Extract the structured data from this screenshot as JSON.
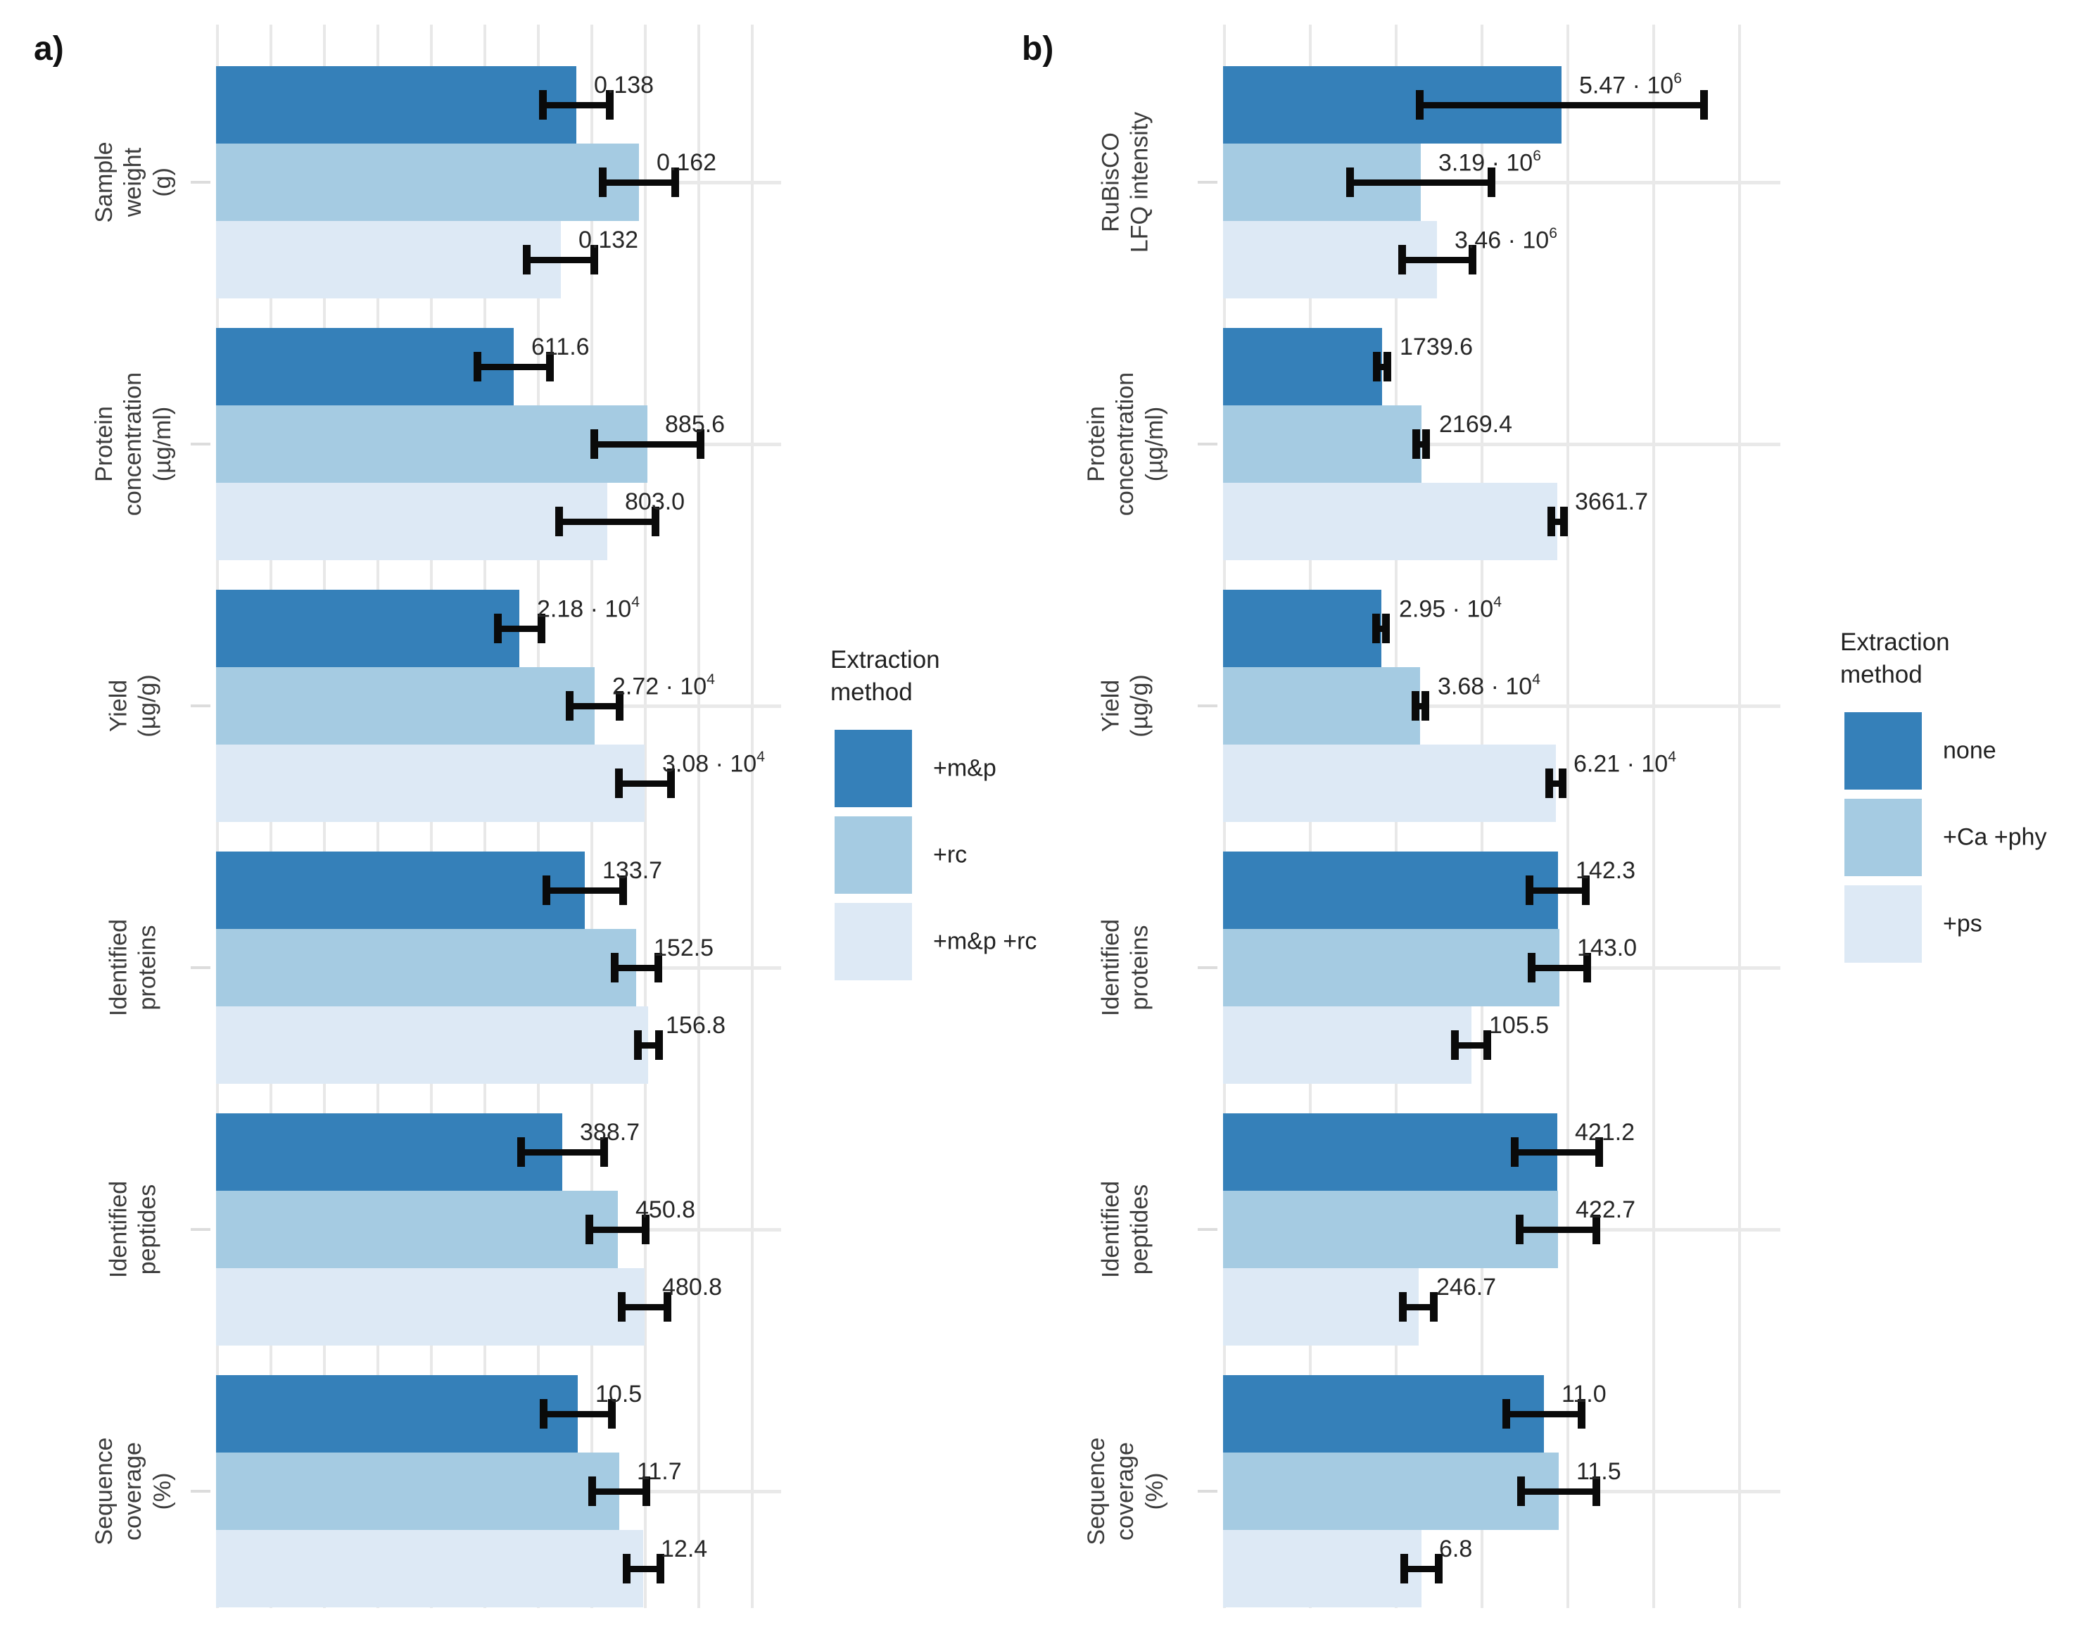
{
  "figure": {
    "panel_a_letter": "a)",
    "panel_b_letter": "b)"
  },
  "colors": {
    "series": [
      "#3580b9",
      "#a5cbe2",
      "#dde9f5"
    ],
    "error_bar": "#0a0a0a",
    "gridline": "#e8e8e8",
    "tick": "#dcdcdc",
    "category_text": "#3c3c3c",
    "value_text": "#262626",
    "background": "#ffffff"
  },
  "chart_data": [
    {
      "type": "bar",
      "orientation": "horizontal",
      "panel": "a)",
      "grid": true,
      "legend_position": "right",
      "legend_title": "Extraction method",
      "series_names": [
        "+m&p",
        "+rc",
        "+m&p +rc"
      ],
      "categories": [
        "Sample weight (g)",
        "Protein concentration (µg/ml)",
        "Yield (µg/g)",
        "Identified proteins",
        "Identified peptides",
        "Sequence coverage (%)"
      ],
      "category_label_lines": [
        "Sample\nweight\n(g)",
        "Protein\nconcentration\n(µg/ml)",
        "Yield\n(µg/g)",
        "Identified\nproteins",
        "Identified\npeptides",
        "Sequence\ncoverage\n(%)"
      ],
      "rows": [
        {
          "category": "Sample weight (g)",
          "axis_max": 0.2165,
          "values": [
            0.138,
            0.162,
            0.132
          ],
          "errors": [
            0.013,
            0.014,
            0.013
          ],
          "labels": [
            "0.138",
            "0.162",
            "0.132"
          ]
        },
        {
          "category": "Protein concentration (µg/ml)",
          "axis_max": 1160,
          "values": [
            611.6,
            885.6,
            803.0
          ],
          "errors": [
            75,
            110,
            100
          ],
          "labels": [
            "611.6",
            "885.6",
            "803.0"
          ]
        },
        {
          "category": "Yield (µg/g)",
          "axis_max": 40600,
          "values": [
            21800,
            27200,
            30800
          ],
          "errors": [
            1600,
            1800,
            1900
          ],
          "labels": [
            "2.18 · 10^4",
            "2.72 · 10^4",
            "3.08 · 10^4"
          ]
        },
        {
          "category": "Identified proteins",
          "axis_max": 205,
          "values": [
            133.7,
            152.5,
            156.8
          ],
          "errors": [
            14,
            8,
            4
          ],
          "labels": [
            "133.7",
            "152.5",
            "156.8"
          ]
        },
        {
          "category": "Identified peptides",
          "axis_max": 634,
          "values": [
            388.7,
            450.8,
            480.8
          ],
          "errors": [
            47,
            32,
            26
          ],
          "labels": [
            "388.7",
            "450.8",
            "480.8"
          ]
        },
        {
          "category": "Sequence coverage (%)",
          "axis_max": 16.4,
          "values": [
            10.5,
            11.7,
            12.4
          ],
          "errors": [
            1.0,
            0.8,
            0.5
          ],
          "labels": [
            "10.5",
            "11.7",
            "12.4"
          ]
        }
      ]
    },
    {
      "type": "bar",
      "orientation": "horizontal",
      "panel": "b)",
      "grid": true,
      "legend_position": "right",
      "legend_title": "Extraction method",
      "series_names": [
        "none",
        "+Ca +phy",
        "+ps"
      ],
      "categories": [
        "RuBisCO LFQ intensity",
        "Protein concentration (µg/ml)",
        "Yield (µg/g)",
        "Identified proteins",
        "Identified peptides",
        "Sequence coverage (%)"
      ],
      "category_label_lines": [
        "RuBisCO\nLFQ intensity",
        "Protein\nconcentration\n(µg/ml)",
        "Yield\n(µg/g)",
        "Identified\nproteins",
        "Identified\npeptides",
        "Sequence\ncoverage\n(%)"
      ],
      "rows": [
        {
          "category": "RuBisCO LFQ intensity",
          "axis_max": 9000000,
          "values": [
            5470000,
            3190000,
            3460000
          ],
          "errors": [
            2300000,
            1150000,
            570000
          ],
          "labels": [
            "5.47 · 10^6",
            "3.19 · 10^6",
            "3.46 · 10^6"
          ]
        },
        {
          "category": "Protein concentration (µg/ml)",
          "axis_max": 6100,
          "values": [
            1739.6,
            2169.4,
            3661.7
          ],
          "errors": [
            60,
            60,
            75
          ],
          "labels": [
            "1739.6",
            "2169.4",
            "3661.7"
          ]
        },
        {
          "category": "Yield (µg/g)",
          "axis_max": 104000,
          "values": [
            29500,
            36800,
            62100
          ],
          "errors": [
            1000,
            1000,
            1300
          ],
          "labels": [
            "2.95 · 10^4",
            "3.68 · 10^4",
            "6.21 · 10^4"
          ]
        },
        {
          "category": "Identified proteins",
          "axis_max": 237,
          "values": [
            142.3,
            143.0,
            105.5
          ],
          "errors": [
            12,
            12,
            7
          ],
          "labels": [
            "142.3",
            "143.0",
            "105.5"
          ]
        },
        {
          "category": "Identified peptides",
          "axis_max": 703,
          "values": [
            421.2,
            422.7,
            246.7
          ],
          "errors": [
            54,
            49,
            20
          ],
          "labels": [
            "421.2",
            "422.7",
            "246.7"
          ]
        },
        {
          "category": "Sequence coverage (%)",
          "axis_max": 19.1,
          "values": [
            11.0,
            11.5,
            6.8
          ],
          "errors": [
            1.3,
            1.3,
            0.6
          ],
          "labels": [
            "11.0",
            "11.5",
            "6.8"
          ]
        }
      ]
    }
  ]
}
